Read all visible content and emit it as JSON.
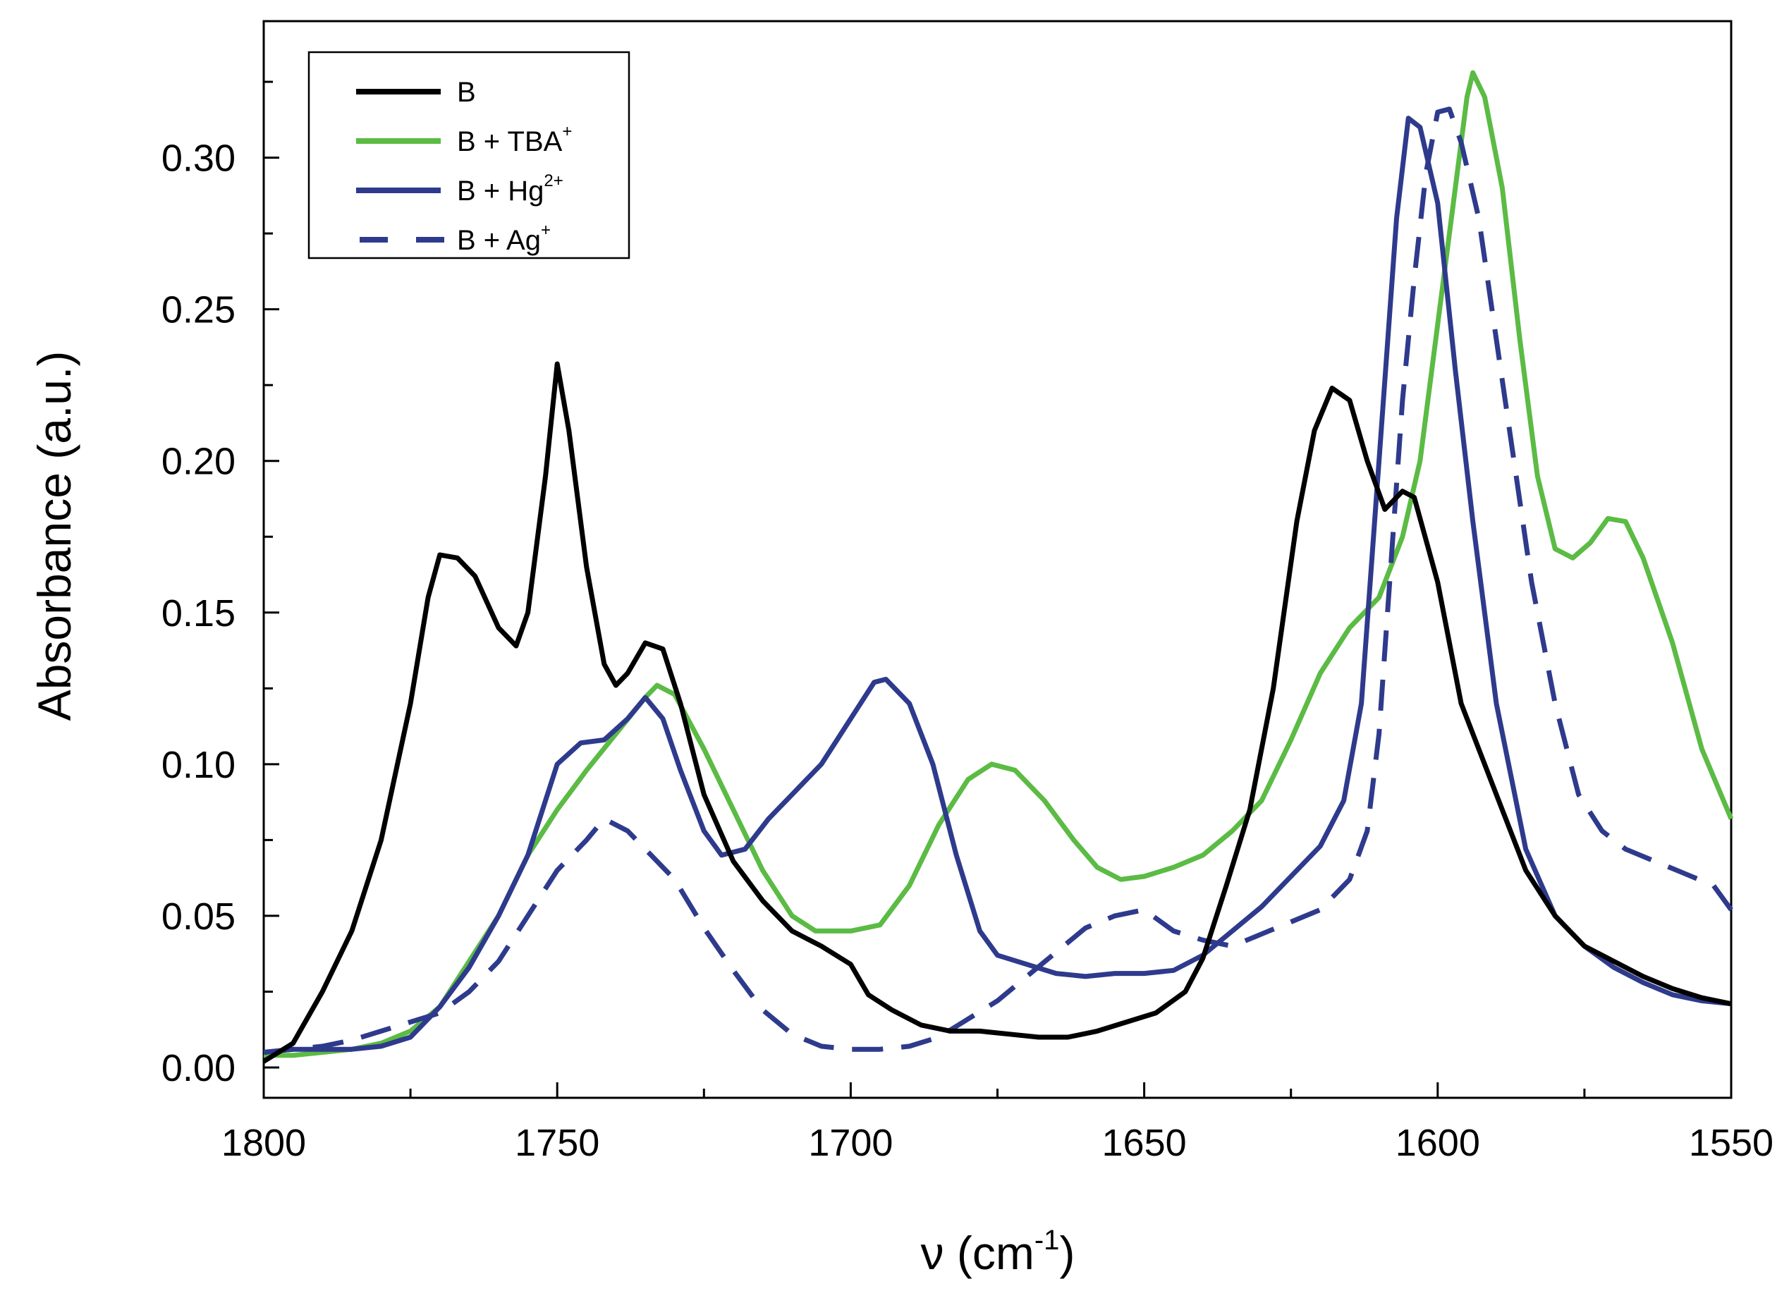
{
  "chart_data": {
    "type": "line",
    "title": "",
    "xlabel": "ν (cm",
    "xlabel_sup": "-1",
    "xlabel_close": ")",
    "ylabel": "Absorbance (a.u.)",
    "xlim": [
      1800,
      1550
    ],
    "ylim": [
      -0.01,
      0.345
    ],
    "x_ticks": [
      1800,
      1750,
      1700,
      1650,
      1600,
      1550
    ],
    "x_tick_labels": [
      "1800",
      "1750",
      "1700",
      "1650",
      "1600",
      "1550"
    ],
    "y_ticks": [
      0.0,
      0.05,
      0.1,
      0.15,
      0.2,
      0.25,
      0.3
    ],
    "y_tick_labels": [
      "0.00",
      "0.05",
      "0.10",
      "0.15",
      "0.20",
      "0.25",
      "0.30"
    ],
    "grid": false,
    "legend_position": "top-left",
    "series": [
      {
        "name": "B",
        "label_base": "B",
        "label_sup": "",
        "color": "#000000",
        "dash": "solid",
        "points": [
          [
            1800,
            0.002
          ],
          [
            1795,
            0.008
          ],
          [
            1790,
            0.025
          ],
          [
            1785,
            0.045
          ],
          [
            1780,
            0.075
          ],
          [
            1775,
            0.12
          ],
          [
            1772,
            0.155
          ],
          [
            1770,
            0.169
          ],
          [
            1767,
            0.168
          ],
          [
            1764,
            0.162
          ],
          [
            1760,
            0.145
          ],
          [
            1757,
            0.139
          ],
          [
            1755,
            0.15
          ],
          [
            1752,
            0.195
          ],
          [
            1750,
            0.232
          ],
          [
            1748,
            0.21
          ],
          [
            1745,
            0.165
          ],
          [
            1742,
            0.133
          ],
          [
            1740,
            0.126
          ],
          [
            1738,
            0.13
          ],
          [
            1735,
            0.14
          ],
          [
            1732,
            0.138
          ],
          [
            1729,
            0.12
          ],
          [
            1725,
            0.09
          ],
          [
            1720,
            0.068
          ],
          [
            1715,
            0.055
          ],
          [
            1710,
            0.045
          ],
          [
            1705,
            0.04
          ],
          [
            1700,
            0.034
          ],
          [
            1697,
            0.024
          ],
          [
            1693,
            0.019
          ],
          [
            1688,
            0.014
          ],
          [
            1683,
            0.012
          ],
          [
            1678,
            0.012
          ],
          [
            1673,
            0.011
          ],
          [
            1668,
            0.01
          ],
          [
            1663,
            0.01
          ],
          [
            1658,
            0.012
          ],
          [
            1653,
            0.015
          ],
          [
            1648,
            0.018
          ],
          [
            1643,
            0.025
          ],
          [
            1640,
            0.036
          ],
          [
            1636,
            0.06
          ],
          [
            1632,
            0.085
          ],
          [
            1628,
            0.125
          ],
          [
            1624,
            0.18
          ],
          [
            1621,
            0.21
          ],
          [
            1618,
            0.224
          ],
          [
            1615,
            0.22
          ],
          [
            1612,
            0.2
          ],
          [
            1609,
            0.184
          ],
          [
            1606,
            0.19
          ],
          [
            1604,
            0.188
          ],
          [
            1600,
            0.16
          ],
          [
            1596,
            0.12
          ],
          [
            1590,
            0.09
          ],
          [
            1585,
            0.065
          ],
          [
            1580,
            0.05
          ],
          [
            1575,
            0.04
          ],
          [
            1570,
            0.035
          ],
          [
            1565,
            0.03
          ],
          [
            1560,
            0.026
          ],
          [
            1555,
            0.023
          ],
          [
            1550,
            0.021
          ]
        ]
      },
      {
        "name": "B + TBA+",
        "label_base": "B + TBA",
        "label_sup": "+",
        "color": "#5bbb44",
        "dash": "solid",
        "points": [
          [
            1800,
            0.004
          ],
          [
            1795,
            0.004
          ],
          [
            1790,
            0.005
          ],
          [
            1785,
            0.006
          ],
          [
            1780,
            0.008
          ],
          [
            1775,
            0.012
          ],
          [
            1770,
            0.02
          ],
          [
            1765,
            0.035
          ],
          [
            1760,
            0.05
          ],
          [
            1755,
            0.07
          ],
          [
            1750,
            0.085
          ],
          [
            1745,
            0.098
          ],
          [
            1740,
            0.11
          ],
          [
            1735,
            0.122
          ],
          [
            1733,
            0.126
          ],
          [
            1730,
            0.123
          ],
          [
            1725,
            0.105
          ],
          [
            1720,
            0.085
          ],
          [
            1715,
            0.065
          ],
          [
            1710,
            0.05
          ],
          [
            1706,
            0.045
          ],
          [
            1700,
            0.045
          ],
          [
            1695,
            0.047
          ],
          [
            1690,
            0.06
          ],
          [
            1685,
            0.08
          ],
          [
            1680,
            0.095
          ],
          [
            1676,
            0.1
          ],
          [
            1672,
            0.098
          ],
          [
            1667,
            0.088
          ],
          [
            1662,
            0.075
          ],
          [
            1658,
            0.066
          ],
          [
            1654,
            0.062
          ],
          [
            1650,
            0.063
          ],
          [
            1645,
            0.066
          ],
          [
            1640,
            0.07
          ],
          [
            1635,
            0.078
          ],
          [
            1630,
            0.088
          ],
          [
            1625,
            0.108
          ],
          [
            1620,
            0.13
          ],
          [
            1615,
            0.145
          ],
          [
            1610,
            0.155
          ],
          [
            1606,
            0.175
          ],
          [
            1603,
            0.2
          ],
          [
            1600,
            0.245
          ],
          [
            1597,
            0.29
          ],
          [
            1595,
            0.32
          ],
          [
            1594,
            0.328
          ],
          [
            1592,
            0.32
          ],
          [
            1589,
            0.29
          ],
          [
            1586,
            0.24
          ],
          [
            1583,
            0.195
          ],
          [
            1580,
            0.171
          ],
          [
            1577,
            0.168
          ],
          [
            1574,
            0.173
          ],
          [
            1571,
            0.181
          ],
          [
            1568,
            0.18
          ],
          [
            1565,
            0.168
          ],
          [
            1560,
            0.14
          ],
          [
            1555,
            0.105
          ],
          [
            1550,
            0.082
          ]
        ]
      },
      {
        "name": "B + Hg2+",
        "label_base": "B + Hg",
        "label_sup": "2+",
        "color": "#2e3a8c",
        "dash": "solid",
        "points": [
          [
            1800,
            0.005
          ],
          [
            1795,
            0.006
          ],
          [
            1790,
            0.006
          ],
          [
            1785,
            0.006
          ],
          [
            1780,
            0.007
          ],
          [
            1775,
            0.01
          ],
          [
            1770,
            0.02
          ],
          [
            1765,
            0.033
          ],
          [
            1760,
            0.05
          ],
          [
            1755,
            0.07
          ],
          [
            1750,
            0.1
          ],
          [
            1746,
            0.107
          ],
          [
            1742,
            0.108
          ],
          [
            1738,
            0.115
          ],
          [
            1735,
            0.122
          ],
          [
            1732,
            0.115
          ],
          [
            1729,
            0.098
          ],
          [
            1725,
            0.078
          ],
          [
            1722,
            0.07
          ],
          [
            1718,
            0.072
          ],
          [
            1714,
            0.082
          ],
          [
            1710,
            0.09
          ],
          [
            1705,
            0.1
          ],
          [
            1700,
            0.115
          ],
          [
            1696,
            0.127
          ],
          [
            1694,
            0.128
          ],
          [
            1690,
            0.12
          ],
          [
            1686,
            0.1
          ],
          [
            1682,
            0.07
          ],
          [
            1678,
            0.045
          ],
          [
            1675,
            0.037
          ],
          [
            1670,
            0.034
          ],
          [
            1665,
            0.031
          ],
          [
            1660,
            0.03
          ],
          [
            1655,
            0.031
          ],
          [
            1650,
            0.031
          ],
          [
            1645,
            0.032
          ],
          [
            1640,
            0.037
          ],
          [
            1635,
            0.045
          ],
          [
            1630,
            0.053
          ],
          [
            1625,
            0.063
          ],
          [
            1620,
            0.073
          ],
          [
            1616,
            0.088
          ],
          [
            1613,
            0.12
          ],
          [
            1610,
            0.2
          ],
          [
            1607,
            0.28
          ],
          [
            1605,
            0.313
          ],
          [
            1603,
            0.31
          ],
          [
            1600,
            0.285
          ],
          [
            1597,
            0.23
          ],
          [
            1594,
            0.18
          ],
          [
            1590,
            0.12
          ],
          [
            1585,
            0.072
          ],
          [
            1580,
            0.05
          ],
          [
            1575,
            0.04
          ],
          [
            1570,
            0.033
          ],
          [
            1565,
            0.028
          ],
          [
            1560,
            0.024
          ],
          [
            1555,
            0.022
          ],
          [
            1550,
            0.021
          ]
        ]
      },
      {
        "name": "B + Ag+",
        "label_base": "B + Ag",
        "label_sup": "+",
        "color": "#2e3a8c",
        "dash": "dashed",
        "points": [
          [
            1800,
            0.005
          ],
          [
            1795,
            0.006
          ],
          [
            1790,
            0.007
          ],
          [
            1785,
            0.009
          ],
          [
            1780,
            0.012
          ],
          [
            1775,
            0.015
          ],
          [
            1770,
            0.018
          ],
          [
            1765,
            0.025
          ],
          [
            1760,
            0.035
          ],
          [
            1755,
            0.05
          ],
          [
            1750,
            0.065
          ],
          [
            1745,
            0.075
          ],
          [
            1742,
            0.082
          ],
          [
            1738,
            0.078
          ],
          [
            1735,
            0.072
          ],
          [
            1730,
            0.062
          ],
          [
            1725,
            0.046
          ],
          [
            1720,
            0.032
          ],
          [
            1715,
            0.019
          ],
          [
            1710,
            0.011
          ],
          [
            1705,
            0.007
          ],
          [
            1700,
            0.006
          ],
          [
            1695,
            0.006
          ],
          [
            1690,
            0.007
          ],
          [
            1685,
            0.01
          ],
          [
            1680,
            0.016
          ],
          [
            1675,
            0.022
          ],
          [
            1670,
            0.03
          ],
          [
            1665,
            0.038
          ],
          [
            1660,
            0.046
          ],
          [
            1655,
            0.05
          ],
          [
            1650,
            0.052
          ],
          [
            1645,
            0.045
          ],
          [
            1640,
            0.042
          ],
          [
            1635,
            0.04
          ],
          [
            1630,
            0.044
          ],
          [
            1625,
            0.048
          ],
          [
            1620,
            0.052
          ],
          [
            1615,
            0.062
          ],
          [
            1612,
            0.078
          ],
          [
            1610,
            0.11
          ],
          [
            1608,
            0.165
          ],
          [
            1606,
            0.22
          ],
          [
            1604,
            0.26
          ],
          [
            1602,
            0.295
          ],
          [
            1600,
            0.315
          ],
          [
            1598,
            0.316
          ],
          [
            1596,
            0.305
          ],
          [
            1593,
            0.28
          ],
          [
            1590,
            0.24
          ],
          [
            1587,
            0.2
          ],
          [
            1584,
            0.16
          ],
          [
            1580,
            0.12
          ],
          [
            1576,
            0.09
          ],
          [
            1572,
            0.078
          ],
          [
            1568,
            0.072
          ],
          [
            1563,
            0.068
          ],
          [
            1558,
            0.064
          ],
          [
            1553,
            0.06
          ],
          [
            1550,
            0.052
          ]
        ]
      }
    ]
  }
}
